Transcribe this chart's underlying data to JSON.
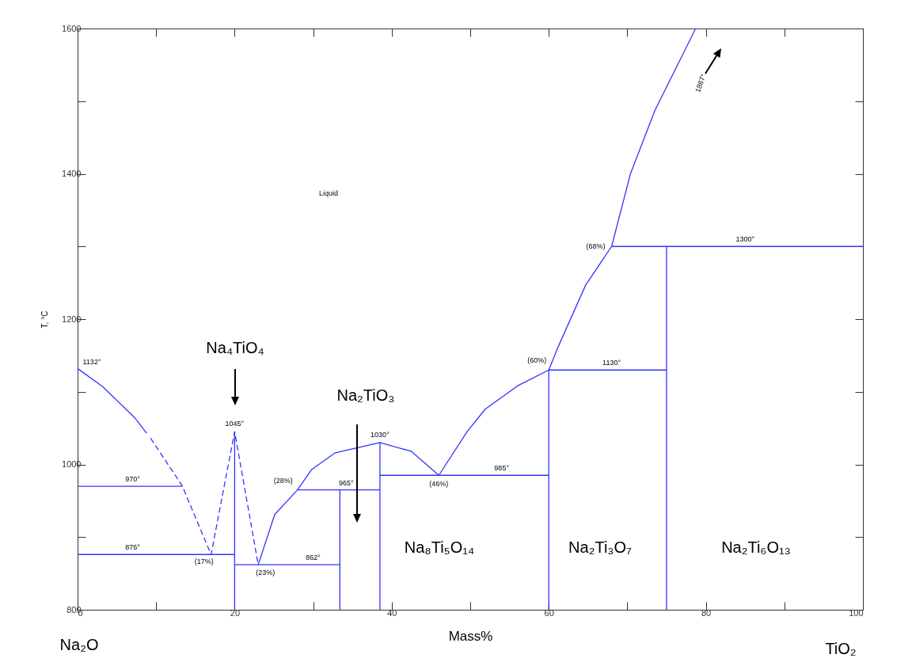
{
  "chart_data": {
    "type": "line",
    "xlabel": "Mass%",
    "ylabel": "T, °C",
    "xlim": [
      0,
      100
    ],
    "ylim": [
      800,
      1600
    ],
    "xticks": [
      0,
      {
        "value": 10,
        "label": null
      },
      20,
      {
        "value": 30,
        "label": null
      },
      40,
      {
        "value": 50,
        "label": null
      },
      60,
      {
        "value": 70,
        "label": null
      },
      80,
      {
        "value": 90,
        "label": null
      },
      100
    ],
    "yticks": [
      800,
      {
        "value": 900,
        "label": null
      },
      1000,
      {
        "value": 1100,
        "label": null
      },
      1200,
      {
        "value": 1300,
        "label": null
      },
      1400,
      {
        "value": 1500,
        "label": null
      },
      1600
    ],
    "series": [
      {
        "color": "#3333ff",
        "x": [
          0,
          3.2,
          7.3,
          8.8
        ],
        "values": [
          1132,
          1107,
          1064,
          1043
        ]
      },
      {
        "color": "#3333ff",
        "line_style": "dashed",
        "x": [
          9.3,
          13.3,
          17,
          20,
          23
        ],
        "values": [
          1036,
          971,
          876,
          1045,
          862
        ]
      },
      {
        "color": "#3333ff",
        "x": [
          23,
          25.1,
          28,
          29.8,
          32.8,
          38.5,
          42.5,
          46,
          49.6,
          51.9,
          56,
          60,
          61.2,
          64.7,
          68,
          70.4,
          73.5,
          78.7
        ],
        "values": [
          862,
          931,
          965,
          993,
          1016,
          1030,
          1018,
          985,
          1045,
          1076,
          1108,
          1130,
          1162,
          1247,
          1300,
          1400,
          1487,
          1600
        ]
      },
      {
        "color": "#3333ff",
        "x": [
          0,
          13.3
        ],
        "values": [
          970,
          970
        ]
      },
      {
        "color": "#3333ff",
        "x": [
          0,
          20
        ],
        "values": [
          876,
          876
        ]
      },
      {
        "color": "#3333ff",
        "x": [
          20,
          33.4
        ],
        "values": [
          862,
          862
        ]
      },
      {
        "color": "#3333ff",
        "x": [
          28,
          38.5
        ],
        "values": [
          965,
          965
        ]
      },
      {
        "color": "#3333ff",
        "x": [
          38.5,
          60
        ],
        "values": [
          985,
          985
        ]
      },
      {
        "color": "#3333ff",
        "x": [
          60,
          75
        ],
        "values": [
          1130,
          1130
        ]
      },
      {
        "color": "#3333ff",
        "x": [
          68,
          100
        ],
        "values": [
          1300,
          1300
        ]
      },
      {
        "color": "#3333ff",
        "x": [
          20,
          20
        ],
        "values": [
          800,
          1045
        ]
      },
      {
        "color": "#3333ff",
        "x": [
          33.4,
          33.4
        ],
        "values": [
          800,
          965
        ]
      },
      {
        "color": "#3333ff",
        "x": [
          38.5,
          38.5
        ],
        "values": [
          800,
          1030
        ]
      },
      {
        "color": "#3333ff",
        "x": [
          60,
          60
        ],
        "values": [
          800,
          1130
        ]
      },
      {
        "color": "#3333ff",
        "x": [
          75,
          75
        ],
        "values": [
          800,
          1300
        ]
      }
    ],
    "annotations": [
      {
        "text": "1132°",
        "x": 0,
        "y": 1132
      },
      {
        "text": "970°",
        "x": 7,
        "y": 970
      },
      {
        "text": "876°",
        "x": 7,
        "y": 876
      },
      {
        "text": "(17%)",
        "x": 17,
        "y": 876
      },
      {
        "text": "1045°",
        "x": 20,
        "y": 1045
      },
      {
        "text": "(23%)",
        "x": 23,
        "y": 862
      },
      {
        "text": "862°",
        "x": 30,
        "y": 862
      },
      {
        "text": "(28%)",
        "x": 28,
        "y": 965
      },
      {
        "text": "965°",
        "x": 35,
        "y": 965
      },
      {
        "text": "1030°",
        "x": 38.5,
        "y": 1030
      },
      {
        "text": "(46%)",
        "x": 46,
        "y": 985
      },
      {
        "text": "985°",
        "x": 54,
        "y": 985
      },
      {
        "text": "(60%)",
        "x": 60,
        "y": 1130
      },
      {
        "text": "1130°",
        "x": 68,
        "y": 1130
      },
      {
        "text": "(68%)",
        "x": 68,
        "y": 1300
      },
      {
        "text": "1300°",
        "x": 85,
        "y": 1300
      },
      "Liquid",
      "1867°",
      "Na₄TiO₄",
      "Na₂TiO₃",
      "Na₈Ti₅O₁₄",
      "Na₂Ti₃O₇",
      "Na₂Ti₆O₁₃",
      "Na₂O",
      "TiO₂"
    ]
  }
}
